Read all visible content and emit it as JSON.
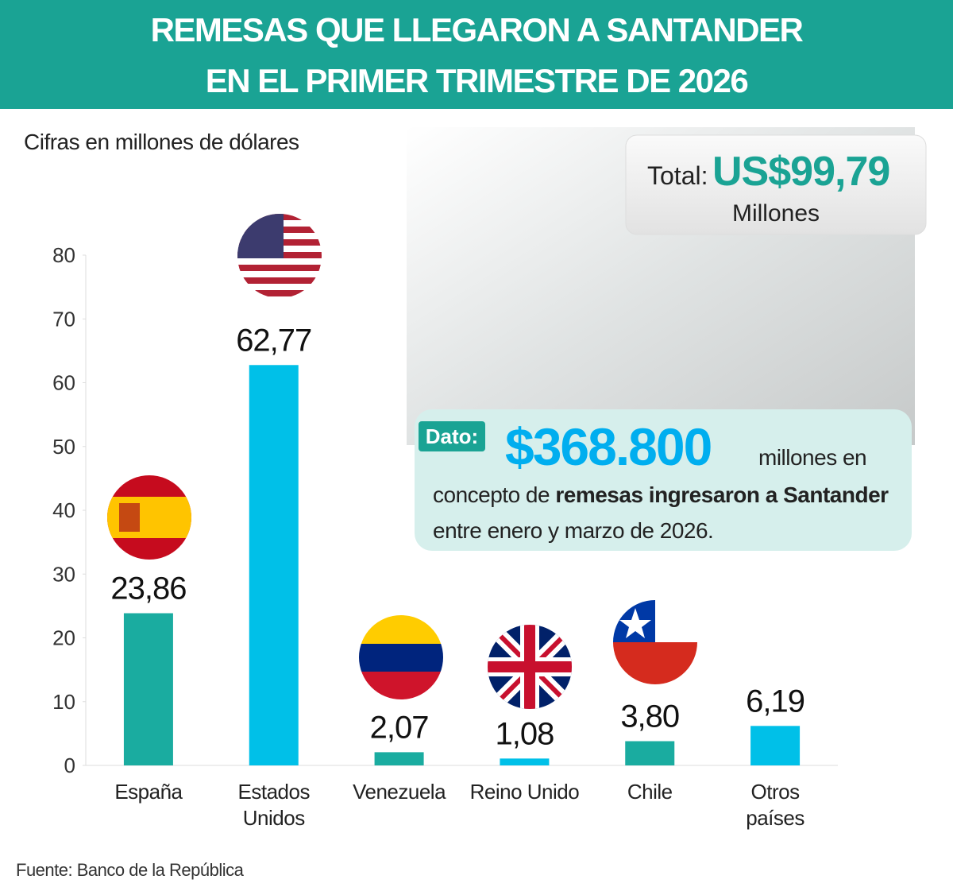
{
  "chart_data": {
    "type": "bar",
    "title": [
      "REMESAS QUE LLEGARON A SANTANDER",
      "EN EL PRIMER TRIMESTRE DE 2026"
    ],
    "subtitle": "Cifras en millones de dólares",
    "categories": [
      "España",
      "Estados Unidos",
      "Venezuela",
      "Reino Unido",
      "Chile",
      "Otros países"
    ],
    "values": [
      23.86,
      62.77,
      2.07,
      1.08,
      3.8,
      6.19
    ],
    "value_labels": [
      "23,86",
      "62,77",
      "2,07",
      "1,08",
      "3,80",
      "6,19"
    ],
    "colors": [
      "#1aaca0",
      "#00c0e8",
      "#1aaca0",
      "#00c0e8",
      "#1aaca0",
      "#00c0e8"
    ],
    "ylim": [
      0,
      80
    ],
    "yticks": [
      0,
      10,
      20,
      30,
      40,
      50,
      60,
      70,
      80
    ],
    "grid": false,
    "total": {
      "label": "Total:",
      "value": "US$99,79",
      "unit": "Millones"
    },
    "dato": {
      "label": "Dato:",
      "value": "$368.800",
      "text_1": "millones en",
      "text_2": "concepto de",
      "text_2_bold": "remesas ingresaron a Santander",
      "text_3": "entre enero y marzo de 2026."
    },
    "source": "Fuente: Banco de la República"
  }
}
